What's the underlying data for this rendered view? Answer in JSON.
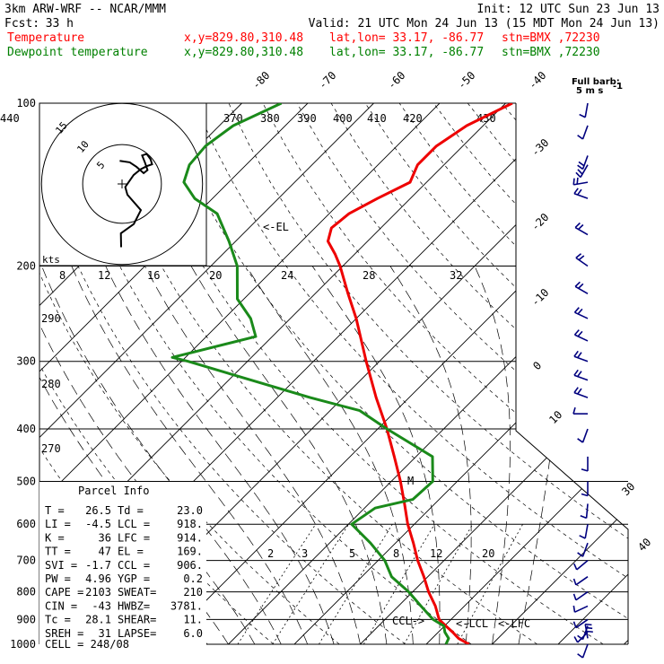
{
  "header": {
    "model": "3km ARW-WRF -- NCAR/MMM",
    "init": "Init: 12 UTC Sun 23 Jun 13",
    "fcst_label": "Fcst:",
    "fcst_value": "33 h",
    "valid": "Valid: 21 UTC Mon 24 Jun 13 (15 MDT Mon 24 Jun 13)",
    "lines": [
      {
        "name": "Temperature",
        "color": "#ff0000",
        "xy": "x,y=829.80,310.48",
        "latlon": "lat,lon= 33.17, -86.77",
        "stn": "stn=BMX ,72230"
      },
      {
        "name": "Dewpoint temperature",
        "color": "#008000",
        "xy": "x,y=829.80,310.48",
        "latlon": "lat,lon= 33.17, -86.77",
        "stn": "stn=BMX ,72230"
      }
    ]
  },
  "colors": {
    "temperature": "#ee0000",
    "dewpoint": "#1a8a1a",
    "axes": "#000000",
    "wind": "#00007f",
    "parcel": "#000080"
  },
  "chart_data": {
    "type": "line",
    "chart_kind": "skew-T log-P diagram",
    "y_scale": "log",
    "pressure_levels": [
      100,
      200,
      300,
      400,
      500,
      600,
      700,
      800,
      900,
      1000
    ],
    "pressure_tick_labels": [
      "100",
      "200",
      "300",
      "400",
      "500",
      "600",
      "700",
      "800",
      "900",
      "1000"
    ],
    "isotherm_labels": [
      "-80",
      "-70",
      "-60",
      "-50",
      "-40",
      "-30",
      "-20",
      "-10",
      "0",
      "10",
      "30",
      "40"
    ],
    "theta_e_labels": [
      "370",
      "380",
      "390",
      "400",
      "410",
      "420",
      "430",
      "440"
    ],
    "theta_labels": [
      "290",
      "280",
      "270"
    ],
    "mixing_ratio_labels": [
      "2",
      "3",
      "5",
      "8",
      "12",
      "20"
    ],
    "series": [
      {
        "name": "Temperature",
        "p": [
          1000,
          975,
          950,
          925,
          900,
          850,
          800,
          750,
          700,
          650,
          600,
          550,
          500,
          450,
          400,
          350,
          300,
          250,
          225,
          200,
          190,
          180,
          170,
          160,
          150,
          140,
          130,
          120,
          110,
          100
        ],
        "t": [
          26.5,
          24,
          22.2,
          20.2,
          18.2,
          15.6,
          12.4,
          9.4,
          6,
          2.7,
          -1,
          -4.6,
          -8.6,
          -13.3,
          -18.6,
          -25,
          -32,
          -40,
          -45,
          -50.4,
          -53,
          -56,
          -57.5,
          -57,
          -55,
          -52.5,
          -54,
          -54,
          -52.5,
          -49
        ]
      },
      {
        "name": "Dewpoint temperature",
        "p": [
          1000,
          975,
          950,
          925,
          900,
          850,
          800,
          750,
          700,
          650,
          600,
          560,
          540,
          500,
          450,
          400,
          370,
          350,
          300,
          295,
          270,
          250,
          230,
          200,
          180,
          160,
          150,
          140,
          130,
          120,
          110,
          100
        ],
        "t": [
          23,
          22.5,
          21,
          19.9,
          17.3,
          13.4,
          9.4,
          4.5,
          1,
          -3.8,
          -9.5,
          -8.4,
          -4,
          -3.7,
          -7.5,
          -18.6,
          -25.5,
          -35,
          -59,
          -62,
          -52.5,
          -56,
          -61,
          -66,
          -71,
          -77,
          -82.7,
          -86.8,
          -88.6,
          -89,
          -87.9,
          -84
        ]
      }
    ],
    "hodograph": {
      "rings": [
        5,
        10,
        15
      ],
      "ring_labels": [
        "5",
        "10",
        "15"
      ],
      "units_label": "kts",
      "points": [
        [
          -0.12,
          -8.2
        ],
        [
          -0.15,
          -6.4
        ],
        [
          1.52,
          -5.2
        ],
        [
          2.44,
          -3.4
        ],
        [
          0.7,
          -1.4
        ],
        [
          0.42,
          -0.4
        ],
        [
          1.5,
          1.15
        ],
        [
          2.4,
          1.9
        ],
        [
          3.2,
          2.3
        ],
        [
          3.9,
          2.55
        ],
        [
          3.7,
          3.2
        ],
        [
          3.2,
          3.9
        ],
        [
          2.6,
          3.7
        ],
        [
          3.0,
          2.7
        ],
        [
          3.3,
          1.8
        ],
        [
          2.8,
          1.4
        ],
        [
          1.9,
          2.2
        ],
        [
          1.0,
          2.8
        ],
        [
          -0.3,
          3.0
        ]
      ]
    },
    "annotations": {
      "el": "<-EL",
      "ccl": "CCL->",
      "lcl": "<-LCL",
      "lfc": "<-LFC",
      "full_barb_title": "Full barb:",
      "full_barb_value": "5 m s",
      "full_barb_unit": "-1"
    },
    "winds": [
      {
        "p": 1000,
        "ws": 5,
        "wd": 200
      },
      {
        "p": 975,
        "ws": 15,
        "wd": 350
      },
      {
        "p": 950,
        "ws": 7,
        "wd": 225
      },
      {
        "p": 925,
        "ws": 5,
        "wd": 200
      },
      {
        "p": 900,
        "ws": 5,
        "wd": 235
      },
      {
        "p": 850,
        "ws": 5,
        "wd": 245
      },
      {
        "p": 800,
        "ws": 5,
        "wd": 235
      },
      {
        "p": 750,
        "ws": 5,
        "wd": 235
      },
      {
        "p": 700,
        "ws": 5,
        "wd": 230
      },
      {
        "p": 650,
        "ws": 7,
        "wd": 200
      },
      {
        "p": 600,
        "ws": 5,
        "wd": 190
      },
      {
        "p": 550,
        "ws": 7,
        "wd": 185
      },
      {
        "p": 500,
        "ws": 4,
        "wd": 180
      },
      {
        "p": 450,
        "ws": 4,
        "wd": 180
      },
      {
        "p": 400,
        "ws": 3,
        "wd": 200
      },
      {
        "p": 375,
        "ws": 5,
        "wd": 270
      },
      {
        "p": 350,
        "ws": 10,
        "wd": 290
      },
      {
        "p": 325,
        "ws": 10,
        "wd": 290
      },
      {
        "p": 300,
        "ws": 10,
        "wd": 290
      },
      {
        "p": 275,
        "ws": 10,
        "wd": 295
      },
      {
        "p": 250,
        "ws": 10,
        "wd": 295
      },
      {
        "p": 225,
        "ws": 12,
        "wd": 300
      },
      {
        "p": 200,
        "ws": 12,
        "wd": 305
      },
      {
        "p": 175,
        "ws": 10,
        "wd": 300
      },
      {
        "p": 150,
        "ws": 10,
        "wd": 290
      },
      {
        "p": 140,
        "ws": 10,
        "wd": 260
      },
      {
        "p": 130,
        "ws": 12,
        "wd": 210
      },
      {
        "p": 125,
        "ws": 10,
        "wd": 200
      },
      {
        "p": 110,
        "ws": 5,
        "wd": 200
      },
      {
        "p": 100,
        "ws": 5,
        "wd": 190
      }
    ]
  },
  "parcel_info": {
    "title": "Parcel Info",
    "rows": [
      [
        "T  =",
        "26.5",
        "Td =",
        "23.0"
      ],
      [
        "LI =",
        "-4.5",
        "LCL =",
        "918."
      ],
      [
        "K  =",
        "36",
        "LFC =",
        "914."
      ],
      [
        "TT =",
        "47",
        "EL =",
        "169."
      ],
      [
        "SVI =",
        "-1.7",
        "CCL =",
        "906."
      ],
      [
        "PW =",
        "4.96",
        "YGP =",
        "0.2"
      ],
      [
        "CAPE =",
        "2103",
        "SWEAT=",
        "210"
      ],
      [
        "CIN =",
        "-43",
        "HWBZ=",
        "3781."
      ],
      [
        "Tc =",
        "28.1",
        "SHEAR=",
        "11."
      ],
      [
        "SREH =",
        "31",
        "LAPSE=",
        "6.0"
      ]
    ],
    "cell": "CELL = 248/08"
  }
}
